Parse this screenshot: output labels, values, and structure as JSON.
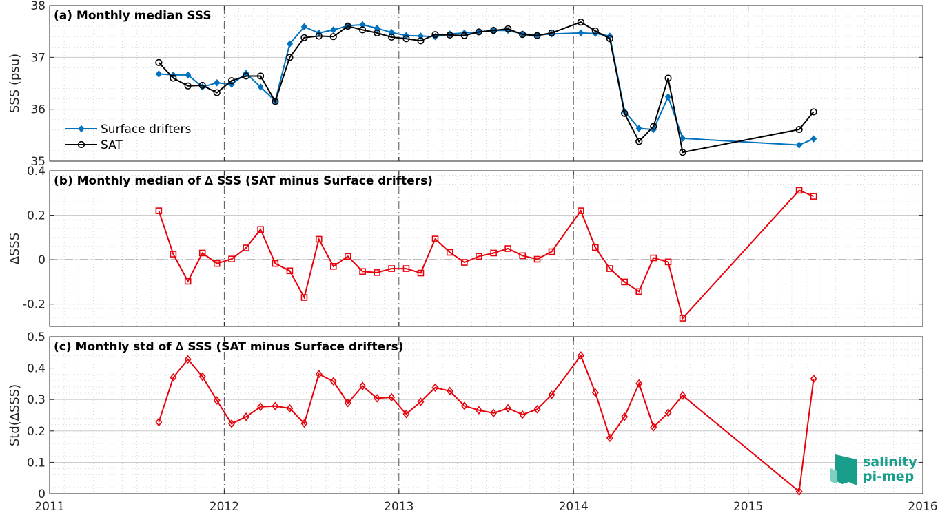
{
  "colors": {
    "drifters": "#0072BD",
    "sat": "#000000",
    "delta": "#E8000B",
    "logo": "#1a9e8c"
  },
  "x_tick_labels": [
    "2011",
    "2012",
    "2013",
    "2014",
    "2015",
    "2016"
  ],
  "logo": {
    "line1": "salinity",
    "line2": "pi-mep"
  },
  "chart_data": [
    {
      "type": "line",
      "title": "(a) Monthly median SSS",
      "ylabel": "SSS (psu)",
      "xlabel": "",
      "xlim": [
        2011,
        2016
      ],
      "ylim": [
        35,
        38
      ],
      "yticks": [
        35,
        36,
        37,
        38
      ],
      "ytick_labels": [
        "35",
        "36",
        "37",
        "38"
      ],
      "grid": true,
      "legend": "left",
      "series": [
        {
          "name": "Surface drifters",
          "marker": "diamond",
          "x": [
            2011.625,
            2011.708,
            2011.792,
            2011.875,
            2011.958,
            2012.042,
            2012.125,
            2012.208,
            2012.292,
            2012.375,
            2012.458,
            2012.542,
            2012.625,
            2012.708,
            2012.792,
            2012.875,
            2012.958,
            2013.042,
            2013.125,
            2013.208,
            2013.292,
            2013.375,
            2013.458,
            2013.542,
            2013.625,
            2013.708,
            2013.792,
            2013.875,
            2014.042,
            2014.125,
            2014.208,
            2014.292,
            2014.375,
            2014.458,
            2014.542,
            2014.625,
            2015.292,
            2015.375
          ],
          "y": [
            36.68,
            36.66,
            36.66,
            36.43,
            36.51,
            36.48,
            36.69,
            36.43,
            36.16,
            37.26,
            37.59,
            37.47,
            37.53,
            37.61,
            37.63,
            37.56,
            37.48,
            37.42,
            37.41,
            37.4,
            37.45,
            37.47,
            37.49,
            37.52,
            37.52,
            37.45,
            37.43,
            37.45,
            37.47,
            37.46,
            37.41,
            35.96,
            35.63,
            35.61,
            36.24,
            35.44,
            35.31,
            35.43
          ]
        },
        {
          "name": "SAT",
          "marker": "circle",
          "x": [
            2011.625,
            2011.708,
            2011.792,
            2011.875,
            2011.958,
            2012.042,
            2012.125,
            2012.208,
            2012.292,
            2012.375,
            2012.458,
            2012.542,
            2012.625,
            2012.708,
            2012.792,
            2012.875,
            2012.958,
            2013.042,
            2013.125,
            2013.208,
            2013.292,
            2013.375,
            2013.458,
            2013.542,
            2013.625,
            2013.708,
            2013.792,
            2013.875,
            2014.042,
            2014.125,
            2014.208,
            2014.292,
            2014.375,
            2014.458,
            2014.542,
            2014.625,
            2015.292,
            2015.375
          ],
          "y": [
            36.9,
            36.6,
            36.45,
            36.46,
            36.32,
            36.55,
            36.64,
            36.64,
            36.15,
            37.0,
            37.38,
            37.41,
            37.4,
            37.6,
            37.53,
            37.47,
            37.39,
            37.36,
            37.32,
            37.44,
            37.43,
            37.42,
            37.49,
            37.52,
            37.55,
            37.44,
            37.42,
            37.47,
            37.68,
            37.51,
            37.36,
            35.92,
            35.38,
            35.67,
            36.6,
            35.17,
            35.61,
            35.95
          ]
        }
      ]
    },
    {
      "type": "line",
      "title": "(b) Monthly median of ∆ SSS (SAT minus Surface drifters)",
      "ylabel": "∆SSS",
      "xlabel": "",
      "xlim": [
        2011,
        2016
      ],
      "ylim": [
        -0.3,
        0.4
      ],
      "yticks": [
        -0.2,
        0,
        0.2,
        0.4
      ],
      "ytick_labels": [
        "-0.2",
        "0",
        "0.2",
        "0.4"
      ],
      "grid": true,
      "zero_line": true,
      "series": [
        {
          "marker": "square",
          "x": [
            2011.625,
            2011.708,
            2011.792,
            2011.875,
            2011.958,
            2012.042,
            2012.125,
            2012.208,
            2012.292,
            2012.375,
            2012.458,
            2012.542,
            2012.625,
            2012.708,
            2012.792,
            2012.875,
            2012.958,
            2013.042,
            2013.125,
            2013.208,
            2013.292,
            2013.375,
            2013.458,
            2013.542,
            2013.625,
            2013.708,
            2013.792,
            2013.875,
            2014.042,
            2014.125,
            2014.208,
            2014.292,
            2014.375,
            2014.458,
            2014.542,
            2014.625,
            2015.292,
            2015.375
          ],
          "y": [
            0.22,
            0.025,
            -0.097,
            0.03,
            -0.017,
            0.003,
            0.053,
            0.136,
            -0.017,
            -0.05,
            -0.17,
            0.092,
            -0.03,
            0.015,
            -0.053,
            -0.058,
            -0.04,
            -0.04,
            -0.06,
            0.093,
            0.033,
            -0.012,
            0.015,
            0.03,
            0.05,
            0.018,
            0.002,
            0.036,
            0.22,
            0.055,
            -0.04,
            -0.1,
            -0.143,
            0.008,
            -0.01,
            -0.263,
            0.312,
            0.285
          ]
        }
      ]
    },
    {
      "type": "line",
      "title": "(c) Monthly std of ∆ SSS (SAT minus Surface drifters)",
      "ylabel": "Std(∆SSS)",
      "xlabel": "",
      "xlim": [
        2011,
        2016
      ],
      "ylim": [
        0,
        0.5
      ],
      "yticks": [
        0,
        0.1,
        0.2,
        0.3,
        0.4,
        0.5
      ],
      "ytick_labels": [
        "0",
        "0.1",
        "0.2",
        "0.3",
        "0.4",
        "0.5"
      ],
      "grid": true,
      "series": [
        {
          "marker": "diamond-open",
          "x": [
            2011.625,
            2011.708,
            2011.792,
            2011.875,
            2011.958,
            2012.042,
            2012.125,
            2012.208,
            2012.292,
            2012.375,
            2012.458,
            2012.542,
            2012.625,
            2012.708,
            2012.792,
            2012.875,
            2012.958,
            2013.042,
            2013.125,
            2013.208,
            2013.292,
            2013.375,
            2013.458,
            2013.542,
            2013.625,
            2013.708,
            2013.792,
            2013.875,
            2014.042,
            2014.125,
            2014.208,
            2014.292,
            2014.375,
            2014.458,
            2014.542,
            2014.625,
            2015.292,
            2015.375
          ],
          "y": [
            0.228,
            0.37,
            0.428,
            0.373,
            0.297,
            0.223,
            0.245,
            0.277,
            0.279,
            0.272,
            0.224,
            0.381,
            0.358,
            0.289,
            0.343,
            0.304,
            0.307,
            0.254,
            0.293,
            0.338,
            0.327,
            0.28,
            0.266,
            0.257,
            0.272,
            0.252,
            0.269,
            0.315,
            0.44,
            0.322,
            0.178,
            0.245,
            0.351,
            0.212,
            0.258,
            0.313,
            0.007,
            0.366
          ]
        }
      ]
    }
  ]
}
